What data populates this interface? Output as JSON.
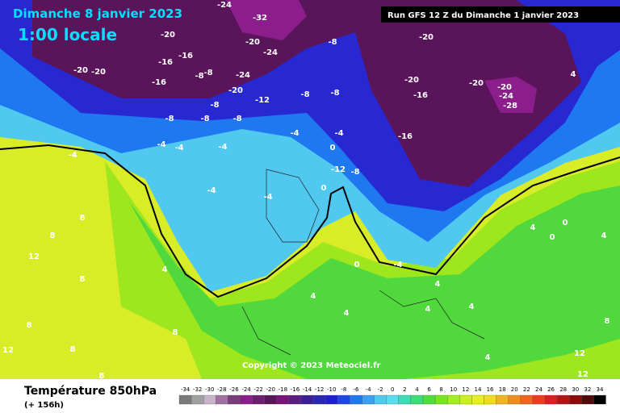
{
  "header": {
    "date": "Dimanche 8 janvier 2023",
    "time": "1:00 locale",
    "run": "Run GFS 12 Z du Dimanche 1 janvier 2023"
  },
  "copyright": "Copyright © 2023 Meteociel.fr",
  "footer": {
    "title": "Température 850hPa",
    "lead": "(+ 156h)"
  },
  "legend": {
    "values": [
      -34,
      -32,
      -30,
      -28,
      -26,
      -24,
      -22,
      -20,
      -18,
      -16,
      -14,
      -12,
      -10,
      -8,
      -6,
      -4,
      -2,
      0,
      2,
      4,
      6,
      8,
      10,
      12,
      14,
      16,
      18,
      20,
      22,
      24,
      26,
      28,
      30,
      32,
      34
    ],
    "colors": [
      "#7a7a7a",
      "#a0a0a0",
      "#c8b4c8",
      "#a070a0",
      "#7a3c7a",
      "#8c1e8c",
      "#6e1e6e",
      "#5a145a",
      "#781478",
      "#5a1e82",
      "#3c1e96",
      "#2828b4",
      "#1e1ed2",
      "#1e46e6",
      "#1e78f0",
      "#3ca0f0",
      "#50c8f0",
      "#5adcf0",
      "#3cdcb4",
      "#3cdc78",
      "#50dc3c",
      "#78e61e",
      "#a0f01e",
      "#c8f01e",
      "#e6f01e",
      "#f0dc1e",
      "#f0b41e",
      "#f08c1e",
      "#f0641e",
      "#f03c1e",
      "#dc1e1e",
      "#b41414",
      "#8c0a0a",
      "#500a0a",
      "#000000"
    ]
  },
  "contour_labels": [
    -20,
    -20,
    -16,
    -16,
    -20,
    -16,
    -24,
    -32,
    -20,
    -24,
    -8,
    -8,
    -24,
    -20,
    -12,
    -8,
    -8,
    -8,
    -8,
    -8,
    -8,
    -8,
    -20,
    -20,
    -16,
    -16,
    -20,
    -20,
    -24,
    -28,
    -4,
    -4,
    -4,
    -4,
    -4,
    -4,
    -4,
    -4,
    0,
    0,
    -12,
    -8,
    0,
    -4,
    4,
    4,
    4,
    4,
    4,
    8,
    8,
    12,
    8,
    8,
    8,
    8,
    12,
    8,
    4,
    4,
    12,
    12,
    8,
    4,
    4,
    0,
    0,
    4
  ]
}
